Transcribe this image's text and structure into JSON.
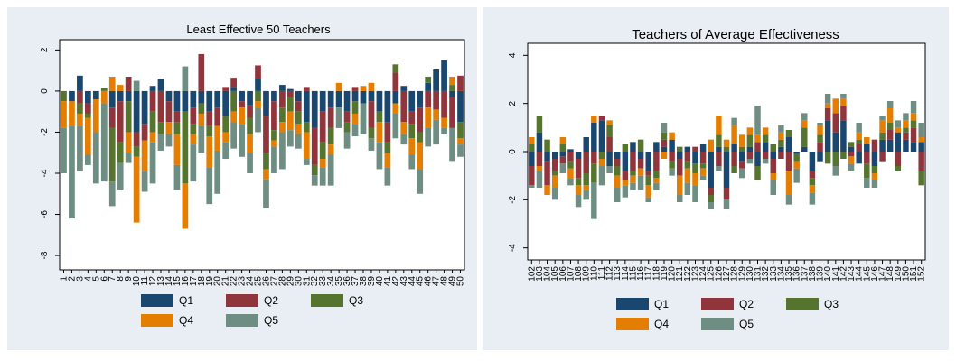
{
  "colors": {
    "Q1": "#1a476f",
    "Q2": "#90353b",
    "Q3": "#55752f",
    "Q4": "#e37e00",
    "Q5": "#6e8e84"
  },
  "chart_data": [
    {
      "type": "bar",
      "stacked": "diverging",
      "title": "Least Effective 50 Teachers",
      "xlabel": "",
      "ylabel": "",
      "ylim": [
        -8.7,
        2.5
      ],
      "yticks": [
        2,
        0,
        -2,
        -4,
        -6,
        -8
      ],
      "grid": "none",
      "legend": "bottom",
      "categories": [
        "1",
        "2",
        "3",
        "4",
        "5",
        "6",
        "7",
        "8",
        "9",
        "10",
        "11",
        "12",
        "13",
        "14",
        "15",
        "16",
        "17",
        "18",
        "19",
        "20",
        "21",
        "22",
        "23",
        "24",
        "25",
        "26",
        "27",
        "28",
        "29",
        "30",
        "31",
        "32",
        "33",
        "34",
        "35",
        "36",
        "37",
        "38",
        "39",
        "40",
        "41",
        "42",
        "43",
        "44",
        "45",
        "46",
        "47",
        "48",
        "49",
        "50"
      ],
      "series": [
        {
          "name": "Q1",
          "values": [
            0.0,
            -0.5,
            0.75,
            -0.6,
            -0.4,
            0.0,
            -0.8,
            -0.5,
            -0.5,
            -2.0,
            -1.6,
            0.25,
            0.6,
            -0.5,
            -1.0,
            -1.0,
            -0.8,
            -0.6,
            -1.0,
            -0.8,
            -1.2,
            0.2,
            -0.5,
            -0.7,
            0.6,
            -1.2,
            -0.5,
            0.3,
            0.1,
            -0.5,
            -1.5,
            -1.8,
            -1.0,
            -0.8,
            -0.8,
            -1.0,
            -0.5,
            -0.6,
            -0.5,
            -1.0,
            -1.5,
            -0.6,
            0.25,
            -1.0,
            -0.8,
            0.4,
            1.05,
            1.5,
            -0.3,
            -1.5
          ]
        },
        {
          "name": "Q2",
          "values": [
            0.0,
            0.0,
            -0.6,
            -0.5,
            0.0,
            0.0,
            -1.0,
            -2.0,
            0.7,
            -0.7,
            -0.8,
            -1.0,
            -1.5,
            -1.0,
            -0.5,
            0.0,
            -0.8,
            1.8,
            -0.7,
            -0.9,
            0.2,
            0.45,
            -0.3,
            -0.6,
            0.65,
            -1.8,
            -1.4,
            -0.8,
            -0.3,
            -0.5,
            0.2,
            -1.8,
            -1.5,
            -1.0,
            0.0,
            -0.5,
            0.2,
            0.0,
            -1.3,
            0.0,
            -1.0,
            0.9,
            -1.5,
            -0.6,
            -1.2,
            -0.8,
            -0.9,
            -1.3,
            -1.5,
            0.75
          ]
        },
        {
          "name": "Q3",
          "values": [
            -0.5,
            0.0,
            -0.5,
            -0.2,
            0.0,
            0.15,
            -2.6,
            -1.0,
            -1.5,
            -0.5,
            0.0,
            -1.0,
            -0.6,
            0.0,
            -0.6,
            -3.5,
            -0.5,
            -0.5,
            -0.5,
            0.0,
            -0.8,
            -1.0,
            0.0,
            -0.8,
            -0.5,
            -0.8,
            -0.5,
            -0.7,
            -0.7,
            -0.6,
            -0.5,
            -0.5,
            -0.8,
            -0.8,
            0.0,
            -0.5,
            -0.6,
            0.0,
            -0.5,
            -0.5,
            -0.5,
            0.4,
            0.0,
            -0.7,
            -0.5,
            0.3,
            0.0,
            0.0,
            0.3,
            -0.8
          ]
        },
        {
          "name": "Q4",
          "values": [
            -1.3,
            -1.2,
            -0.6,
            -1.8,
            -1.6,
            -0.6,
            0.7,
            0.3,
            -1.0,
            -3.2,
            -1.5,
            -0.5,
            0.0,
            -0.6,
            -1.5,
            -2.2,
            -0.5,
            -0.6,
            -1.5,
            -1.2,
            -0.5,
            -0.5,
            -0.8,
            -0.9,
            -0.3,
            -0.5,
            -0.3,
            -0.5,
            -0.9,
            -0.5,
            -1.3,
            0.0,
            -0.4,
            -0.5,
            0.4,
            0.0,
            -0.5,
            0.25,
            0.4,
            -1.0,
            -0.7,
            -0.5,
            -0.6,
            -0.8,
            -1.3,
            -1.0,
            -0.5,
            -0.5,
            0.4,
            -0.3
          ]
        },
        {
          "name": "Q5",
          "values": [
            -2.2,
            -4.5,
            -2.2,
            -0.5,
            -2.5,
            -3.8,
            -1.2,
            -1.3,
            -0.5,
            0.5,
            -1.0,
            -2.0,
            -0.8,
            -0.6,
            -1.2,
            1.2,
            -1.8,
            -1.3,
            -1.8,
            -2.1,
            -0.8,
            -1.3,
            -1.6,
            -1.0,
            -1.2,
            -1.4,
            -1.3,
            -1.8,
            -0.8,
            -0.7,
            -0.3,
            -0.5,
            -0.9,
            -1.5,
            -1.0,
            -0.8,
            -0.6,
            -1.5,
            -0.6,
            -1.3,
            -0.9,
            -1.2,
            -0.5,
            -0.7,
            -1.2,
            -0.9,
            -1.2,
            -0.3,
            -1.6,
            -0.6
          ]
        }
      ]
    },
    {
      "type": "bar",
      "stacked": "diverging",
      "title": "Teachers of Average Effectiveness",
      "xlabel": "",
      "ylabel": "",
      "ylim": [
        -4.5,
        4.5
      ],
      "yticks": [
        4,
        2,
        0,
        -2,
        -4
      ],
      "grid": "none",
      "legend": "bottom",
      "categories": [
        "102",
        "103",
        "104",
        "105",
        "106",
        "107",
        "108",
        "109",
        "110",
        "111",
        "112",
        "113",
        "114",
        "115",
        "116",
        "117",
        "118",
        "119",
        "120",
        "121",
        "122",
        "123",
        "124",
        "125",
        "126",
        "127",
        "128",
        "129",
        "130",
        "131",
        "132",
        "133",
        "134",
        "135",
        "136",
        "137",
        "138",
        "139",
        "140",
        "141",
        "142",
        "143",
        "144",
        "145",
        "146",
        "147",
        "148",
        "149",
        "150",
        "151",
        "152"
      ],
      "series": [
        {
          "name": "Q1",
          "values": [
            -0.6,
            0.8,
            -0.4,
            -0.3,
            -0.2,
            0.1,
            -0.3,
            0.6,
            1.2,
            1.3,
            -0.6,
            -0.3,
            -0.8,
            0.4,
            -0.3,
            -0.8,
            0.4,
            0.2,
            0.5,
            -0.3,
            0.2,
            -0.5,
            0.3,
            -1.5,
            0.2,
            -1.5,
            0.3,
            -0.4,
            0.2,
            -0.6,
            0.4,
            -0.3,
            0.2,
            0.6,
            -0.1,
            0.2,
            -0.8,
            -0.4,
            1.3,
            0.8,
            1.3,
            0.2,
            -0.5,
            0.3,
            -0.6,
            0.5,
            0.5,
            0.8,
            0.5,
            0.4,
            0.4
          ]
        },
        {
          "name": "Q2",
          "values": [
            -0.8,
            -0.6,
            -1.0,
            -0.5,
            -0.3,
            -0.4,
            -0.8,
            -0.9,
            -0.5,
            0.2,
            0.6,
            -0.3,
            -0.4,
            -0.8,
            -0.4,
            -0.2,
            -0.8,
            0.3,
            -0.4,
            -0.7,
            -0.4,
            0.2,
            -0.5,
            -0.3,
            -0.6,
            -0.5,
            -0.6,
            -0.3,
            -0.3,
            0.4,
            -0.3,
            -0.6,
            -0.3,
            -0.8,
            0.0,
            0.0,
            -0.3,
            0.4,
            0.5,
            0.8,
            0.6,
            -0.2,
            0.3,
            -0.5,
            0.5,
            -0.4,
            0.4,
            -0.6,
            0.3,
            0.6,
            -0.8
          ]
        },
        {
          "name": "Q3",
          "values": [
            0.3,
            0.7,
            0.5,
            -0.2,
            0.3,
            -0.3,
            -0.3,
            -0.5,
            -0.8,
            -0.3,
            0.5,
            -0.4,
            0.3,
            -0.2,
            0.5,
            -0.4,
            -0.3,
            0.3,
            -0.3,
            0.2,
            -0.3,
            -0.4,
            -0.2,
            -0.3,
            0.5,
            0.2,
            -0.3,
            0.2,
            0.5,
            -0.6,
            0.3,
            0.3,
            0.3,
            0.3,
            -0.3,
            0.8,
            -0.3,
            0.3,
            -0.5,
            -0.6,
            -0.3,
            0.2,
            0.2,
            -0.6,
            -0.3,
            0.3,
            0.3,
            -0.2,
            0.2,
            0.3,
            -0.6
          ]
        },
        {
          "name": "Q4",
          "values": [
            0.3,
            -0.2,
            -0.4,
            -0.5,
            0.3,
            -0.4,
            -0.4,
            -0.2,
            0.3,
            -0.3,
            0.2,
            -0.5,
            -0.2,
            -0.3,
            -0.3,
            -0.5,
            -0.2,
            -0.3,
            0.3,
            -0.8,
            -0.6,
            -0.5,
            -0.3,
            0.5,
            0.8,
            0.3,
            0.8,
            0.5,
            0.3,
            0.3,
            0.3,
            -0.3,
            0.3,
            -1.0,
            -0.3,
            0.3,
            -0.3,
            0.4,
            0.2,
            0.6,
            0.3,
            -0.3,
            0.3,
            0.3,
            -0.3,
            0.5,
            0.6,
            0.2,
            0.3,
            0.3,
            0.2
          ]
        },
        {
          "name": "Q5",
          "values": [
            -0.1,
            -0.7,
            0.0,
            -0.5,
            -0.4,
            -0.3,
            -0.5,
            -0.4,
            -1.5,
            -0.8,
            -0.3,
            -0.6,
            -0.5,
            -0.3,
            -0.6,
            -0.2,
            -0.3,
            0.4,
            -0.3,
            -0.3,
            -0.5,
            -0.7,
            -0.2,
            -0.3,
            -0.2,
            -0.4,
            0.3,
            -0.4,
            -0.2,
            1.2,
            -0.2,
            -0.6,
            0.3,
            -0.4,
            -0.6,
            0.3,
            -0.5,
            0.1,
            0.4,
            -0.4,
            0.2,
            -0.3,
            0.4,
            -0.4,
            -0.3,
            0.2,
            0.3,
            0.3,
            0.3,
            0.5,
            0.6
          ]
        }
      ]
    }
  ],
  "legend_labels": [
    "Q1",
    "Q2",
    "Q3",
    "Q4",
    "Q5"
  ]
}
